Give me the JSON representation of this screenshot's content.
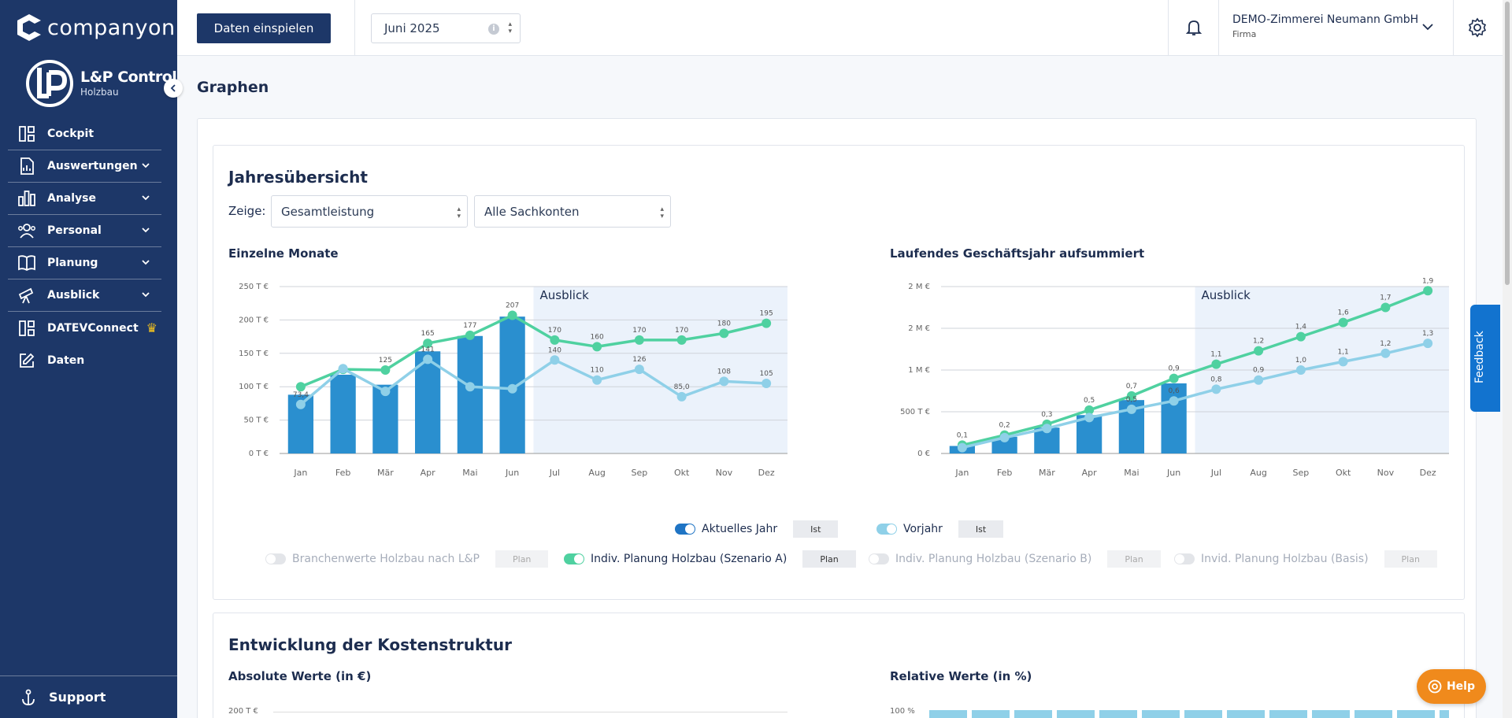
{
  "sidebar": {
    "brand": "companyon",
    "logo_title": "L&P Control",
    "logo_sub": "Holzbau",
    "items": [
      {
        "label": "Cockpit",
        "icon": "dashboard-icon",
        "chevron": false
      },
      {
        "label": "Auswertungen",
        "icon": "report-icon",
        "chevron": true
      },
      {
        "label": "Analyse",
        "icon": "bar-chart-icon",
        "chevron": true
      },
      {
        "label": "Personal",
        "icon": "people-icon",
        "chevron": true
      },
      {
        "label": "Planung",
        "icon": "book-icon",
        "chevron": true
      },
      {
        "label": "Ausblick",
        "icon": "telescope-icon",
        "chevron": true
      },
      {
        "label": "DATEVConnect",
        "icon": "dashboard-icon",
        "chevron": false
      },
      {
        "label": "Daten",
        "icon": "edit-icon",
        "chevron": false
      }
    ],
    "support": "Support"
  },
  "topbar": {
    "import_button": "Daten einspielen",
    "month": "Juni 2025",
    "company_name": "DEMO-Zimmerei Neumann GmbH",
    "company_role": "Firma"
  },
  "main": {
    "page_title": "Graphen",
    "section1": {
      "title": "Jahresübersicht",
      "zeige_label": "Zeige:",
      "select_metric": "Gesamtleistung",
      "select_accounts": "Alle Sachkonten",
      "left_title": "Einzelne Monate",
      "right_title": "Laufendes Geschäftsjahr aufsummiert"
    },
    "legend": {
      "row1": [
        {
          "label": "Aktuelles Jahr",
          "tag": "Ist",
          "on": true,
          "color": "#1f74c4"
        },
        {
          "label": "Vorjahr",
          "tag": "Ist",
          "on": true,
          "color": "#8fd0e8"
        }
      ],
      "row2": [
        {
          "label": "Branchenwerte Holzbau nach L&P",
          "tag": "Plan",
          "on": false
        },
        {
          "label": "Indiv. Planung Holzbau (Szenario A)",
          "tag": "Plan",
          "on": true,
          "color": "#4fd1a0"
        },
        {
          "label": "Indiv. Planung Holzbau (Szenario B)",
          "tag": "Plan",
          "on": false
        },
        {
          "label": "Invid. Planung Holzbau (Basis)",
          "tag": "Plan",
          "on": false
        }
      ]
    },
    "section2": {
      "title": "Entwicklung der Kostenstruktur",
      "left_title": "Absolute Werte (in €)",
      "right_title": "Relative Werte (in %)",
      "left_top_tick": "200 T €",
      "right_top_tick": "100 %"
    }
  },
  "floating": {
    "feedback": "Feedback",
    "help": "Help"
  },
  "chart_data": [
    {
      "type": "bar",
      "title": "Einzelne Monate",
      "categories": [
        "Jan",
        "Feb",
        "Mär",
        "Apr",
        "Mai",
        "Jun",
        "Jul",
        "Aug",
        "Sep",
        "Okt",
        "Nov",
        "Dez"
      ],
      "yticks": [
        "0 T €",
        "50 T €",
        "100 T €",
        "150 T €",
        "200 T €",
        "250 T €"
      ],
      "ylim": [
        0,
        250
      ],
      "annotation": "Ausblick",
      "forecast_start_index": 6,
      "bar_values": [
        88,
        118,
        103,
        153,
        176,
        205
      ],
      "series": [
        {
          "name": "Indiv. Planung Holzbau (Szenario A)",
          "type": "line",
          "color": "#4fd1a0",
          "values": [
            100,
            126,
            125,
            165,
            177,
            207,
            170,
            160,
            170,
            170,
            180,
            195
          ],
          "labels": [
            "",
            "",
            "125",
            "165",
            "177",
            "207",
            "170",
            "160",
            "170",
            "170",
            "180",
            "195"
          ]
        },
        {
          "name": "Vorjahr",
          "type": "line",
          "color": "#8fd0e8",
          "values": [
            73.4,
            127,
            93,
            141,
            100,
            97,
            140,
            110,
            126,
            85.0,
            108,
            105
          ],
          "labels": [
            "73,4",
            "",
            "",
            "141",
            "",
            "",
            "140",
            "110",
            "126",
            "85,0",
            "108",
            "105"
          ]
        }
      ],
      "bar_color": "#2a8fcf"
    },
    {
      "type": "bar",
      "title": "Laufendes Geschäftsjahr aufsummiert",
      "categories": [
        "Jan",
        "Feb",
        "Mär",
        "Apr",
        "Mai",
        "Jun",
        "Jul",
        "Aug",
        "Sep",
        "Okt",
        "Nov",
        "Dez"
      ],
      "yticks": [
        "0 €",
        "500 T €",
        "1 M €",
        "2 M €",
        "2 M €"
      ],
      "ylim": [
        0,
        2
      ],
      "annotation": "Ausblick",
      "forecast_start_index": 6,
      "bar_values": [
        0.09,
        0.2,
        0.31,
        0.46,
        0.64,
        0.84
      ],
      "series": [
        {
          "name": "Indiv. Planung Holzbau (Szenario A)",
          "type": "line",
          "color": "#4fd1a0",
          "values": [
            0.1,
            0.22,
            0.35,
            0.52,
            0.69,
            0.9,
            1.07,
            1.23,
            1.4,
            1.57,
            1.75,
            1.95
          ],
          "labels": [
            "0,1",
            "0,2",
            "0,3",
            "0,5",
            "0,7",
            "0,9",
            "1,1",
            "1,2",
            "1,4",
            "1,6",
            "1,7",
            "1,9"
          ]
        },
        {
          "name": "Vorjahr",
          "type": "line",
          "color": "#8fd0e8",
          "values": [
            0.07,
            0.19,
            0.3,
            0.43,
            0.53,
            0.63,
            0.77,
            0.88,
            1.0,
            1.1,
            1.2,
            1.32
          ],
          "labels": [
            "",
            "",
            "",
            "",
            "0,5",
            "0,6",
            "0,8",
            "0,9",
            "1,0",
            "1,1",
            "1,2",
            "1,3"
          ]
        }
      ],
      "bar_color": "#2a8fcf"
    }
  ]
}
